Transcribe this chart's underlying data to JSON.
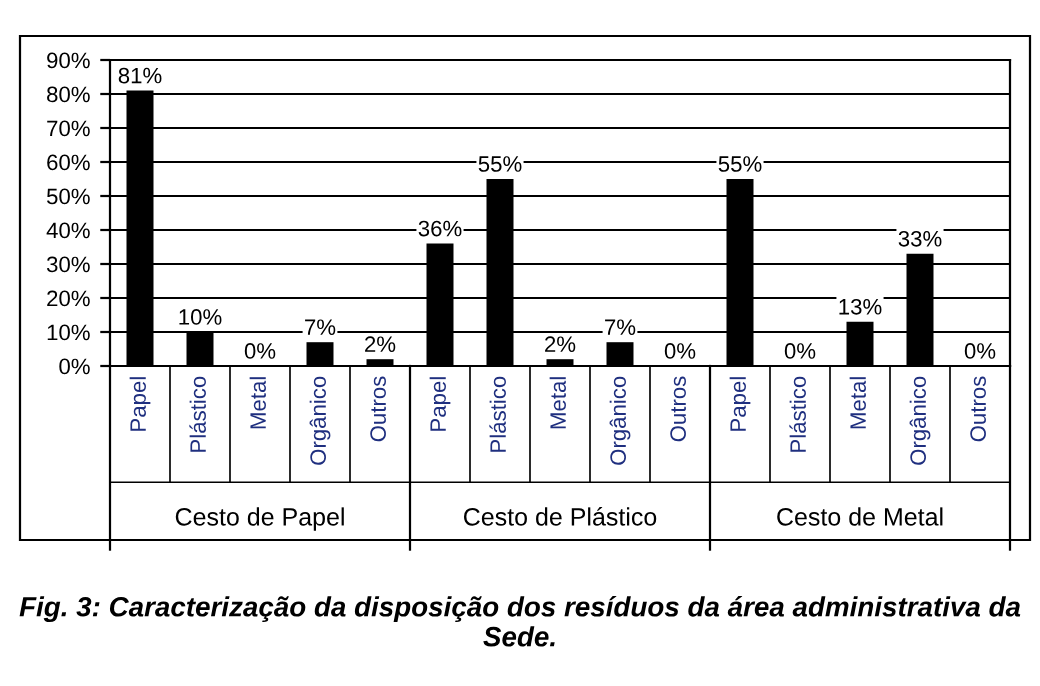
{
  "chart_data": {
    "type": "bar",
    "categories": [
      "Papel",
      "Plástico",
      "Metal",
      "Orgânico",
      "Outros",
      "Papel",
      "Plástico",
      "Metal",
      "Orgânico",
      "Outros",
      "Papel",
      "Plástico",
      "Metal",
      "Orgânico",
      "Outros"
    ],
    "values": [
      81,
      10,
      0,
      7,
      2,
      36,
      55,
      2,
      7,
      0,
      55,
      0,
      13,
      33,
      0
    ],
    "value_labels": [
      "81%",
      "10%",
      "0%",
      "7%",
      "2%",
      "36%",
      "55%",
      "2%",
      "7%",
      "0%",
      "55%",
      "0%",
      "13%",
      "33%",
      "0%"
    ],
    "color": "#000000",
    "ylim": [
      0,
      90
    ],
    "yticks": [
      {
        "value": 0,
        "label": "0%"
      },
      {
        "value": 10,
        "label": "10%"
      },
      {
        "value": 20,
        "label": "20%"
      },
      {
        "value": 30,
        "label": "30%"
      },
      {
        "value": 40,
        "label": "40%"
      },
      {
        "value": 50,
        "label": "50%"
      },
      {
        "value": 60,
        "label": "60%"
      },
      {
        "value": 70,
        "label": "70%"
      },
      {
        "value": 80,
        "label": "80%"
      },
      {
        "value": 90,
        "label": "90%"
      }
    ],
    "grid": "y",
    "annotations": [
      "Cesto de Papel",
      "Cesto de Plástico",
      "Cesto de Metal",
      "Fig. 3: Caracterização da disposição dos resíduos da área administrativa da Sede."
    ]
  }
}
